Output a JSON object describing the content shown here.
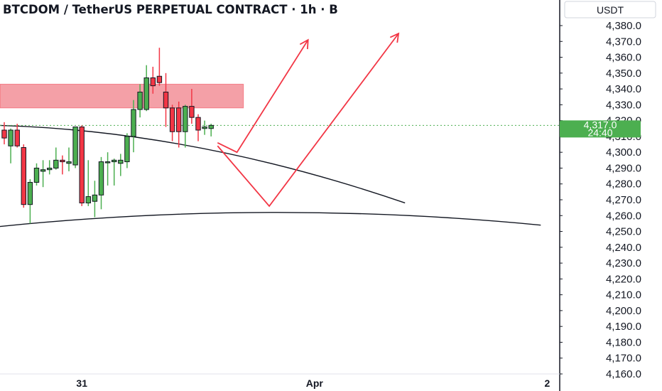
{
  "chart_data": {
    "type": "candlestick",
    "title": "BTCDOM / TetherUS PERPETUAL CONTRACT · 1h · B",
    "currency": "USDT",
    "ylim": [
      4160,
      4385
    ],
    "yticks": [
      "4,380.0",
      "4,370.0",
      "4,360.0",
      "4,350.0",
      "4,340.0",
      "4,330.0",
      "4,320.0",
      "4,310.0",
      "4,300.0",
      "4,290.0",
      "4,280.0",
      "4,270.0",
      "4,260.0",
      "4,250.0",
      "4,240.0",
      "4,230.0",
      "4,220.0",
      "4,210.0",
      "4,200.0",
      "4,190.0",
      "4,180.0",
      "4,170.0",
      "4,160.0"
    ],
    "xticks": [
      {
        "label": "31",
        "index": 12
      },
      {
        "label": "Apr",
        "index": 48
      },
      {
        "label": "2",
        "index": 84
      }
    ],
    "last_price": {
      "value": 4317.0,
      "label": "4,317.0",
      "countdown": "24:40",
      "color": "#4caf50"
    },
    "candles": [
      {
        "o": 4314,
        "h": 4319,
        "l": 4305,
        "c": 4309
      },
      {
        "o": 4304,
        "h": 4315,
        "l": 4293,
        "c": 4314
      },
      {
        "o": 4314,
        "h": 4318,
        "l": 4303,
        "c": 4304
      },
      {
        "o": 4303,
        "h": 4305,
        "l": 4265,
        "c": 4267
      },
      {
        "o": 4267,
        "h": 4283,
        "l": 4255,
        "c": 4281
      },
      {
        "o": 4281,
        "h": 4293,
        "l": 4279,
        "c": 4290
      },
      {
        "o": 4288,
        "h": 4295,
        "l": 4278,
        "c": 4289
      },
      {
        "o": 4289,
        "h": 4295,
        "l": 4286,
        "c": 4290
      },
      {
        "o": 4290,
        "h": 4303,
        "l": 4289,
        "c": 4295
      },
      {
        "o": 4295,
        "h": 4298,
        "l": 4286,
        "c": 4294
      },
      {
        "o": 4293,
        "h": 4303,
        "l": 4288,
        "c": 4294
      },
      {
        "o": 4292,
        "h": 4316,
        "l": 4290,
        "c": 4316
      },
      {
        "o": 4316,
        "h": 4317,
        "l": 4266,
        "c": 4268
      },
      {
        "o": 4268,
        "h": 4295,
        "l": 4266,
        "c": 4272
      },
      {
        "o": 4269,
        "h": 4282,
        "l": 4259,
        "c": 4273
      },
      {
        "o": 4273,
        "h": 4297,
        "l": 4264,
        "c": 4294
      },
      {
        "o": 4294,
        "h": 4300,
        "l": 4279,
        "c": 4294
      },
      {
        "o": 4294,
        "h": 4296,
        "l": 4279,
        "c": 4295
      },
      {
        "o": 4293,
        "h": 4299,
        "l": 4285,
        "c": 4295
      },
      {
        "o": 4294,
        "h": 4312,
        "l": 4290,
        "c": 4310
      },
      {
        "o": 4310,
        "h": 4333,
        "l": 4300,
        "c": 4327
      },
      {
        "o": 4327,
        "h": 4343,
        "l": 4322,
        "c": 4338
      },
      {
        "o": 4327,
        "h": 4355,
        "l": 4326,
        "c": 4347
      },
      {
        "o": 4347,
        "h": 4354,
        "l": 4337,
        "c": 4342
      },
      {
        "o": 4348,
        "h": 4366,
        "l": 4342,
        "c": 4344
      },
      {
        "o": 4338,
        "h": 4350,
        "l": 4316,
        "c": 4328
      },
      {
        "o": 4328,
        "h": 4330,
        "l": 4307,
        "c": 4313
      },
      {
        "o": 4328,
        "h": 4332,
        "l": 4303,
        "c": 4313
      },
      {
        "o": 4313,
        "h": 4330,
        "l": 4303,
        "c": 4329
      },
      {
        "o": 4329,
        "h": 4340,
        "l": 4318,
        "c": 4322
      },
      {
        "o": 4322,
        "h": 4324,
        "l": 4307,
        "c": 4314
      },
      {
        "o": 4315,
        "h": 4320,
        "l": 4311,
        "c": 4316
      },
      {
        "o": 4315,
        "h": 4318,
        "l": 4310,
        "c": 4317
      }
    ],
    "zone": {
      "from_index": -1,
      "to_index": 37,
      "y_low": 4328,
      "y_high": 4343,
      "color": "#f28b94"
    },
    "curves": [
      {
        "points": [
          [
            -1,
            4317
          ],
          [
            30,
            4303
          ],
          [
            62,
            4268
          ]
        ]
      },
      {
        "points": [
          [
            -1,
            4253
          ],
          [
            41,
            4262
          ],
          [
            83,
            4254
          ]
        ]
      }
    ],
    "paths": [
      {
        "points": [
          [
            33,
            4306
          ],
          [
            36,
            4300
          ],
          [
            47,
            4371
          ]
        ],
        "arrow": true
      },
      {
        "points": [
          [
            33,
            4304
          ],
          [
            41,
            4266
          ],
          [
            61,
            4375
          ]
        ],
        "arrow": true
      }
    ],
    "colors": {
      "up": "#4caf50",
      "down": "#f23645",
      "border": "#131722",
      "wick_up": "#4caf50",
      "wick_down": "#f23645",
      "drawing": "#f23645",
      "curve": "#131722",
      "last_price_line": "#4caf50"
    }
  }
}
